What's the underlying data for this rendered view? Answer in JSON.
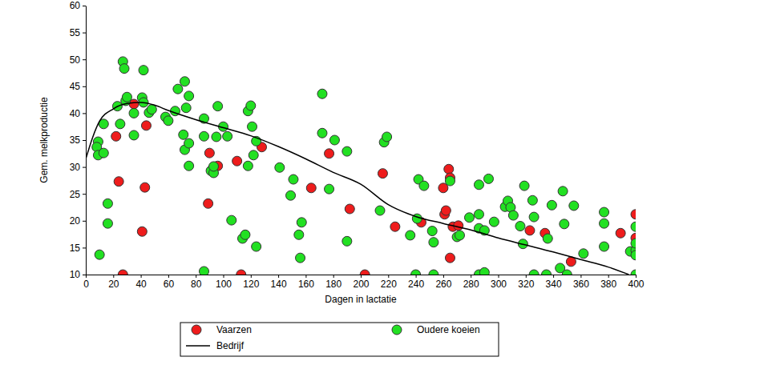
{
  "chart_data": {
    "type": "scatter",
    "x_label": "Dagen in lactatie",
    "y_label": "Gem. melkproductie",
    "xlim": [
      0,
      400
    ],
    "ylim": [
      10,
      60
    ],
    "xticks": [
      0,
      20,
      40,
      60,
      80,
      100,
      120,
      140,
      160,
      180,
      200,
      220,
      240,
      260,
      280,
      300,
      320,
      340,
      360,
      380,
      400
    ],
    "yticks": [
      10,
      15,
      20,
      25,
      30,
      35,
      40,
      45,
      50,
      55,
      60
    ],
    "grid": false,
    "legend": "bottom",
    "series": [
      {
        "name": "Vaarzen",
        "type": "scatter",
        "marker": "circle",
        "color": "#ee1c1c",
        "x": [
          22,
          24,
          27,
          35,
          44,
          43,
          41,
          90,
          89,
          96,
          110,
          113,
          128,
          164,
          177,
          192,
          203,
          216,
          225,
          244,
          260,
          261,
          262,
          264,
          265,
          265,
          267,
          271,
          323,
          334,
          353,
          389,
          400,
          400,
          400
        ],
        "values": [
          35.7,
          27.3,
          10,
          41.7,
          37.7,
          26.2,
          18.0,
          32.6,
          23.2,
          30.2,
          31.1,
          10,
          33.7,
          26.1,
          32.5,
          22.2,
          10,
          28.8,
          18.9,
          19.7,
          26.1,
          21.2,
          21.9,
          29.6,
          28.0,
          13.1,
          18.9,
          19.1,
          18.2,
          17.7,
          12.4,
          17.7,
          21.2,
          16.8,
          14.5
        ]
      },
      {
        "name": "Oudere koeien",
        "type": "scatter",
        "marker": "circle",
        "color": "#22e022",
        "x": [
          9,
          8,
          9,
          10,
          13,
          13,
          16,
          16,
          23,
          25,
          27,
          28,
          29,
          30,
          35,
          35,
          41,
          42,
          42,
          46,
          48,
          58,
          60,
          65,
          67,
          72,
          71,
          72,
          73,
          75,
          75,
          75,
          86,
          86,
          86,
          91,
          93,
          93,
          95,
          96,
          100,
          103,
          106,
          114,
          116,
          118,
          118,
          120,
          121,
          122,
          124,
          124,
          141,
          149,
          151,
          155,
          156,
          157,
          172,
          172,
          181,
          177,
          190,
          190,
          214,
          217,
          219,
          236,
          241,
          242,
          246,
          252,
          253,
          253,
          240,
          265,
          270,
          272,
          279,
          286,
          286,
          286,
          286,
          290,
          290,
          293,
          297,
          305,
          307,
          309,
          311,
          316,
          318,
          319,
          325,
          326,
          326,
          336,
          335,
          339,
          345,
          347,
          348,
          350,
          355,
          362,
          377,
          377,
          377,
          396,
          400,
          400,
          400,
          400,
          400
        ],
        "values": [
          34.7,
          33.7,
          32.2,
          13.7,
          38.0,
          32.6,
          23.2,
          19.5,
          41.3,
          38.0,
          49.6,
          48.3,
          42.3,
          43.0,
          40.0,
          35.9,
          42.9,
          48.0,
          42.0,
          40.1,
          40.7,
          39.3,
          38.6,
          40.4,
          44.5,
          45.9,
          36.0,
          33.2,
          41.0,
          43.2,
          34.4,
          30.2,
          39.0,
          35.7,
          10.6,
          29.3,
          28.9,
          30.1,
          35.6,
          41.3,
          37.5,
          35.7,
          20.1,
          16.7,
          17.4,
          30.2,
          40.4,
          41.4,
          37.5,
          32.2,
          34.8,
          15.2,
          29.9,
          24.7,
          27.7,
          17.4,
          13.1,
          19.7,
          43.6,
          36.3,
          35.0,
          25.9,
          32.9,
          16.2,
          21.9,
          34.6,
          35.6,
          17.3,
          20.4,
          27.7,
          26.5,
          18.1,
          16.0,
          10,
          10,
          27.4,
          17.0,
          17.3,
          20.6,
          21.2,
          26.7,
          18.6,
          10,
          18.2,
          10.4,
          27.8,
          19.8,
          22.6,
          23.7,
          22.5,
          21.0,
          19.0,
          15.7,
          26.5,
          23.8,
          20.7,
          10,
          16.7,
          10,
          22.9,
          11.2,
          25.5,
          19.4,
          10,
          22.8,
          13.9,
          21.6,
          19.5,
          15.2,
          14.3,
          14.5,
          15.8,
          13.6,
          10,
          18.9
        ]
      },
      {
        "name": "Bedrijf",
        "type": "line",
        "line_style": "solid",
        "color": "#000000",
        "x": [
          0,
          5,
          10,
          20,
          30,
          40,
          50,
          60,
          80,
          100,
          120,
          140,
          160,
          180,
          200,
          220,
          240,
          260,
          280,
          300,
          320,
          340,
          360,
          380,
          395
        ],
        "values": [
          31.5,
          35.5,
          38.5,
          40.8,
          41.8,
          42.0,
          41.5,
          40.5,
          38.8,
          37.3,
          35.8,
          33.8,
          31.5,
          29.0,
          26.8,
          23.0,
          20.8,
          19.5,
          18.3,
          16.8,
          15.5,
          14.2,
          12.8,
          11.4,
          10.0
        ]
      }
    ]
  }
}
